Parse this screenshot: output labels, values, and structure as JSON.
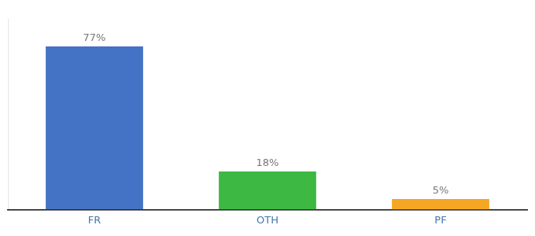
{
  "chart_data": {
    "type": "bar",
    "categories": [
      "FR",
      "OTH",
      "PF"
    ],
    "values": [
      77,
      18,
      5
    ],
    "value_labels": [
      "77%",
      "18%",
      "5%"
    ],
    "data_labels": true,
    "colors": [
      "#4472c4",
      "#3cb843",
      "#f5a623"
    ],
    "ylim": [
      0,
      90
    ],
    "grid": false,
    "tick_labels": "x"
  }
}
